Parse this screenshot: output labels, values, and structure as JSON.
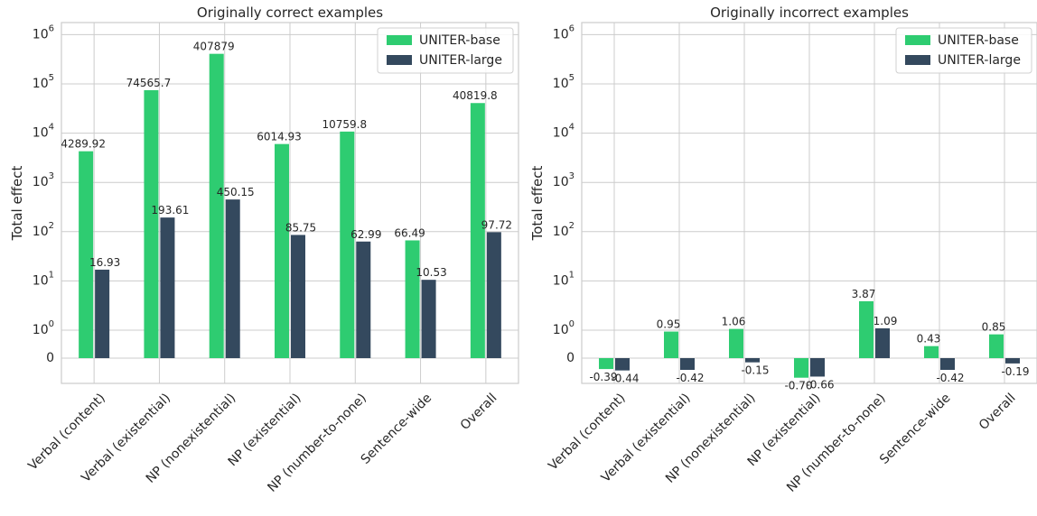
{
  "colors": {
    "base": "#2ecc71",
    "large": "#34495e"
  },
  "chart_data": [
    {
      "type": "bar",
      "title": "Originally correct examples",
      "ylabel": "Total effect",
      "xlabel": "",
      "yscale": "symlog",
      "yticks": [
        "0",
        "10^0",
        "10^1",
        "10^2",
        "10^3",
        "10^4",
        "10^5",
        "10^6"
      ],
      "grid": true,
      "legend": "top-right",
      "categories": [
        "Verbal (content)",
        "Verbal (existential)",
        "NP (nonexistential)",
        "NP (existential)",
        "NP (number-to-none)",
        "Sentence-wide",
        "Overall"
      ],
      "series": [
        {
          "name": "UNITER-base",
          "values": [
            4289.92,
            74565.7,
            407879,
            6014.93,
            10759.8,
            66.49,
            40819.8
          ],
          "labels": [
            "4289.92",
            "74565.7",
            "407879",
            "6014.93",
            "10759.8",
            "66.49",
            "40819.8"
          ]
        },
        {
          "name": "UNITER-large",
          "values": [
            16.93,
            193.61,
            450.15,
            85.75,
            62.99,
            10.53,
            97.72
          ],
          "labels": [
            "16.93",
            "193.61",
            "450.15",
            "85.75",
            "62.99",
            "10.53",
            "97.72"
          ]
        }
      ]
    },
    {
      "type": "bar",
      "title": "Originally incorrect examples",
      "ylabel": "Total effect",
      "xlabel": "",
      "yscale": "symlog",
      "yticks": [
        "0",
        "10^0",
        "10^1",
        "10^2",
        "10^3",
        "10^4",
        "10^5",
        "10^6"
      ],
      "grid": true,
      "legend": "top-right",
      "categories": [
        "Verbal (content)",
        "Verbal (existential)",
        "NP (nonexistential)",
        "NP (existential)",
        "NP (number-to-none)",
        "Sentence-wide",
        "Overall"
      ],
      "series": [
        {
          "name": "UNITER-base",
          "values": [
            -0.39,
            0.95,
            1.06,
            -0.7,
            3.87,
            0.43,
            0.85
          ],
          "labels": [
            "-0.39",
            "0.95",
            "1.06",
            "-0.70",
            "3.87",
            "0.43",
            "0.85"
          ]
        },
        {
          "name": "UNITER-large",
          "values": [
            -0.44,
            -0.42,
            -0.15,
            -0.66,
            1.09,
            -0.42,
            -0.19
          ],
          "labels": [
            "-0.44",
            "-0.42",
            "-0.15",
            "-0.66",
            "1.09",
            "-0.42",
            "-0.19"
          ]
        }
      ]
    }
  ]
}
